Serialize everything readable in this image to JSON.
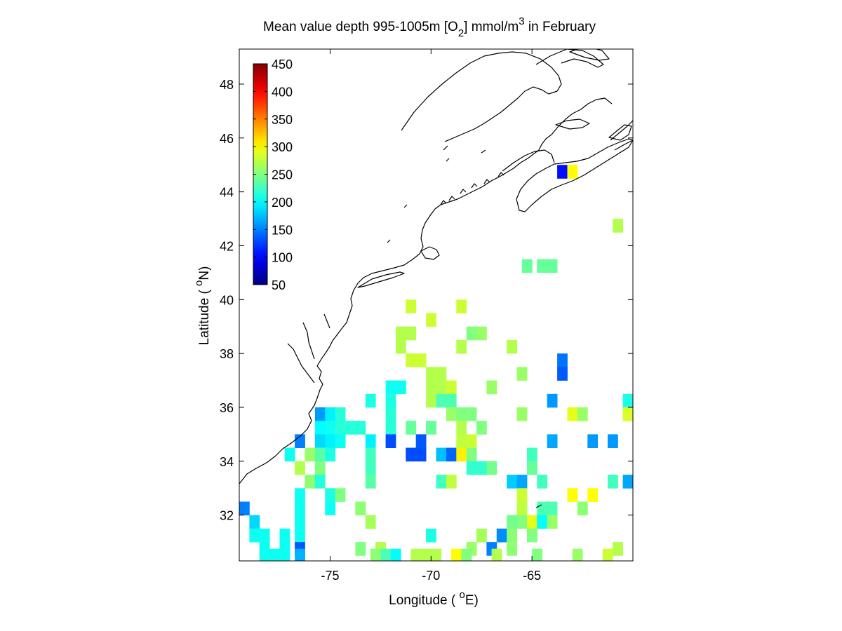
{
  "chart_data": {
    "type": "heatmap",
    "title": {
      "prefix": "Mean value depth 995-1005m [O",
      "sub": "2",
      "mid": "] mmol/m",
      "sup": "3",
      "suffix": " in February"
    },
    "xlabel": {
      "prefix": "Longitude ( ",
      "sup": "o",
      "suffix": "E)"
    },
    "ylabel": {
      "prefix": "Latitude ( ",
      "sup": "o",
      "suffix": "N)"
    },
    "xlim": [
      -79.5,
      -60.0
    ],
    "ylim": [
      30.3,
      49.3
    ],
    "xticks": [
      {
        "value": -75,
        "label": "-75"
      },
      {
        "value": -70,
        "label": "-70"
      },
      {
        "value": -65,
        "label": "-65"
      }
    ],
    "yticks": [
      {
        "value": 32,
        "label": "32"
      },
      {
        "value": 34,
        "label": "34"
      },
      {
        "value": 36,
        "label": "36"
      },
      {
        "value": 38,
        "label": "38"
      },
      {
        "value": 40,
        "label": "40"
      },
      {
        "value": 42,
        "label": "42"
      },
      {
        "value": 44,
        "label": "44"
      },
      {
        "value": 46,
        "label": "46"
      },
      {
        "value": 48,
        "label": "48"
      }
    ],
    "colorbar": {
      "colormap": "jet",
      "range": [
        50,
        450
      ],
      "ticks": [
        {
          "value": 50,
          "label": "50"
        },
        {
          "value": 100,
          "label": "100"
        },
        {
          "value": 150,
          "label": "150"
        },
        {
          "value": 200,
          "label": "200"
        },
        {
          "value": 250,
          "label": "250"
        },
        {
          "value": 300,
          "label": "300"
        },
        {
          "value": 350,
          "label": "350"
        },
        {
          "value": 400,
          "label": "400"
        },
        {
          "value": 450,
          "label": "450"
        }
      ],
      "placement": "top-left, inside axes"
    },
    "cell_size_deg": 0.5,
    "cells": [
      [
        -63.5,
        44.75,
        105
      ],
      [
        -63.0,
        44.75,
        300
      ],
      [
        -60.75,
        42.75,
        270
      ],
      [
        -65.25,
        41.25,
        240
      ],
      [
        -64.5,
        41.25,
        240
      ],
      [
        -64.0,
        41.25,
        240
      ],
      [
        -71.0,
        39.75,
        280
      ],
      [
        -68.5,
        39.75,
        280
      ],
      [
        -70.0,
        39.25,
        280
      ],
      [
        -71.5,
        38.75,
        270
      ],
      [
        -71.0,
        38.75,
        270
      ],
      [
        -68.0,
        38.75,
        250
      ],
      [
        -67.5,
        38.75,
        260
      ],
      [
        -71.5,
        38.25,
        270
      ],
      [
        -68.5,
        38.25,
        270
      ],
      [
        -66.0,
        38.25,
        270
      ],
      [
        -71.0,
        37.75,
        280
      ],
      [
        -70.5,
        37.75,
        280
      ],
      [
        -63.5,
        37.75,
        145
      ],
      [
        -70.0,
        37.25,
        270
      ],
      [
        -69.5,
        37.25,
        270
      ],
      [
        -65.5,
        37.25,
        260
      ],
      [
        -63.5,
        37.25,
        135
      ],
      [
        -72.0,
        36.75,
        205
      ],
      [
        -71.5,
        36.75,
        205
      ],
      [
        -70.0,
        36.75,
        270
      ],
      [
        -69.5,
        36.75,
        270
      ],
      [
        -69.0,
        36.75,
        280
      ],
      [
        -67.0,
        36.75,
        260
      ],
      [
        -73.0,
        36.25,
        210
      ],
      [
        -72.0,
        36.25,
        210
      ],
      [
        -70.0,
        36.25,
        270
      ],
      [
        -69.5,
        36.25,
        230
      ],
      [
        -69.0,
        36.25,
        230
      ],
      [
        -64.0,
        36.25,
        160
      ],
      [
        -60.25,
        36.25,
        210
      ],
      [
        -75.5,
        35.75,
        160
      ],
      [
        -75.0,
        35.75,
        195
      ],
      [
        -74.5,
        35.75,
        215
      ],
      [
        -72.0,
        35.75,
        215
      ],
      [
        -69.0,
        35.75,
        260
      ],
      [
        -68.5,
        35.75,
        250
      ],
      [
        -68.0,
        35.75,
        250
      ],
      [
        -65.5,
        35.75,
        260
      ],
      [
        -63.0,
        35.75,
        290
      ],
      [
        -62.5,
        35.75,
        260
      ],
      [
        -60.25,
        35.75,
        285
      ],
      [
        -75.5,
        35.25,
        200
      ],
      [
        -75.0,
        35.25,
        205
      ],
      [
        -74.5,
        35.25,
        215
      ],
      [
        -74.0,
        35.25,
        215
      ],
      [
        -73.5,
        35.25,
        215
      ],
      [
        -72.0,
        35.25,
        215
      ],
      [
        -71.0,
        35.25,
        240
      ],
      [
        -70.0,
        35.25,
        240
      ],
      [
        -68.5,
        35.25,
        270
      ],
      [
        -67.5,
        35.25,
        250
      ],
      [
        -76.5,
        34.75,
        150
      ],
      [
        -75.5,
        34.75,
        185
      ],
      [
        -75.0,
        34.75,
        195
      ],
      [
        -74.5,
        34.75,
        205
      ],
      [
        -73.0,
        34.75,
        195
      ],
      [
        -72.0,
        34.75,
        130
      ],
      [
        -70.5,
        34.75,
        135
      ],
      [
        -68.5,
        34.75,
        275
      ],
      [
        -68.0,
        34.75,
        280
      ],
      [
        -64.0,
        34.75,
        165
      ],
      [
        -62.0,
        34.75,
        160
      ],
      [
        -61.0,
        34.75,
        160
      ],
      [
        -77.0,
        34.25,
        205
      ],
      [
        -76.0,
        34.25,
        260
      ],
      [
        -75.5,
        34.25,
        235
      ],
      [
        -75.0,
        34.25,
        210
      ],
      [
        -73.0,
        34.25,
        225
      ],
      [
        -71.0,
        34.25,
        130
      ],
      [
        -70.5,
        34.25,
        130
      ],
      [
        -69.5,
        34.25,
        175
      ],
      [
        -69.0,
        34.25,
        140
      ],
      [
        -68.5,
        34.25,
        305
      ],
      [
        -68.0,
        34.25,
        250
      ],
      [
        -65.0,
        34.25,
        225
      ],
      [
        -76.5,
        33.75,
        270
      ],
      [
        -75.5,
        33.75,
        250
      ],
      [
        -73.0,
        33.75,
        225
      ],
      [
        -68.0,
        33.75,
        220
      ],
      [
        -67.5,
        33.75,
        220
      ],
      [
        -67.0,
        33.75,
        245
      ],
      [
        -65.0,
        33.75,
        240
      ],
      [
        -76.0,
        33.25,
        255
      ],
      [
        -75.5,
        33.25,
        215
      ],
      [
        -73.0,
        33.25,
        235
      ],
      [
        -69.5,
        33.25,
        225
      ],
      [
        -69.0,
        33.25,
        275
      ],
      [
        -66.0,
        33.25,
        180
      ],
      [
        -65.5,
        33.25,
        165
      ],
      [
        -64.5,
        33.25,
        225
      ],
      [
        -61.0,
        33.25,
        225
      ],
      [
        -60.25,
        33.25,
        165
      ],
      [
        -76.5,
        32.75,
        205
      ],
      [
        -75.0,
        32.75,
        210
      ],
      [
        -74.5,
        32.75,
        250
      ],
      [
        -65.5,
        32.75,
        280
      ],
      [
        -63.0,
        32.75,
        300
      ],
      [
        -62.0,
        32.75,
        300
      ],
      [
        -79.25,
        32.25,
        150
      ],
      [
        -76.5,
        32.25,
        205
      ],
      [
        -75.0,
        32.25,
        205
      ],
      [
        -73.5,
        32.25,
        255
      ],
      [
        -65.5,
        32.25,
        275
      ],
      [
        -64.5,
        32.25,
        230
      ],
      [
        -64.0,
        32.25,
        230
      ],
      [
        -62.5,
        32.25,
        255
      ],
      [
        -78.75,
        31.75,
        185
      ],
      [
        -76.5,
        31.75,
        205
      ],
      [
        -73.0,
        31.75,
        265
      ],
      [
        -66.0,
        31.75,
        245
      ],
      [
        -65.5,
        31.75,
        250
      ],
      [
        -65.0,
        31.75,
        290
      ],
      [
        -64.5,
        31.75,
        200
      ],
      [
        -64.0,
        31.75,
        260
      ],
      [
        -78.75,
        31.25,
        205
      ],
      [
        -78.25,
        31.25,
        205
      ],
      [
        -77.25,
        31.25,
        205
      ],
      [
        -76.5,
        31.25,
        205
      ],
      [
        -70.0,
        31.25,
        210
      ],
      [
        -67.5,
        31.25,
        265
      ],
      [
        -66.5,
        31.25,
        155
      ],
      [
        -66.0,
        31.25,
        255
      ],
      [
        -65.0,
        31.25,
        250
      ],
      [
        -78.25,
        30.75,
        205
      ],
      [
        -77.25,
        30.75,
        205
      ],
      [
        -76.5,
        30.75,
        135
      ],
      [
        -73.5,
        30.75,
        250
      ],
      [
        -72.5,
        30.75,
        270
      ],
      [
        -68.0,
        30.75,
        260
      ],
      [
        -67.0,
        30.75,
        150
      ],
      [
        -66.0,
        30.75,
        255
      ],
      [
        -60.75,
        30.75,
        270
      ],
      [
        -78.25,
        30.5,
        205
      ],
      [
        -77.75,
        30.5,
        205
      ],
      [
        -77.25,
        30.5,
        205
      ],
      [
        -76.5,
        30.5,
        170
      ],
      [
        -72.75,
        30.5,
        255
      ],
      [
        -72.25,
        30.5,
        230
      ],
      [
        -71.75,
        30.5,
        200
      ],
      [
        -70.75,
        30.5,
        270
      ],
      [
        -70.25,
        30.5,
        270
      ],
      [
        -69.75,
        30.5,
        270
      ],
      [
        -68.75,
        30.5,
        300
      ],
      [
        -68.25,
        30.5,
        250
      ],
      [
        -66.75,
        30.5,
        270
      ],
      [
        -64.75,
        30.5,
        250
      ],
      [
        -62.75,
        30.5,
        260
      ],
      [
        -61.25,
        30.5,
        280
      ]
    ]
  }
}
